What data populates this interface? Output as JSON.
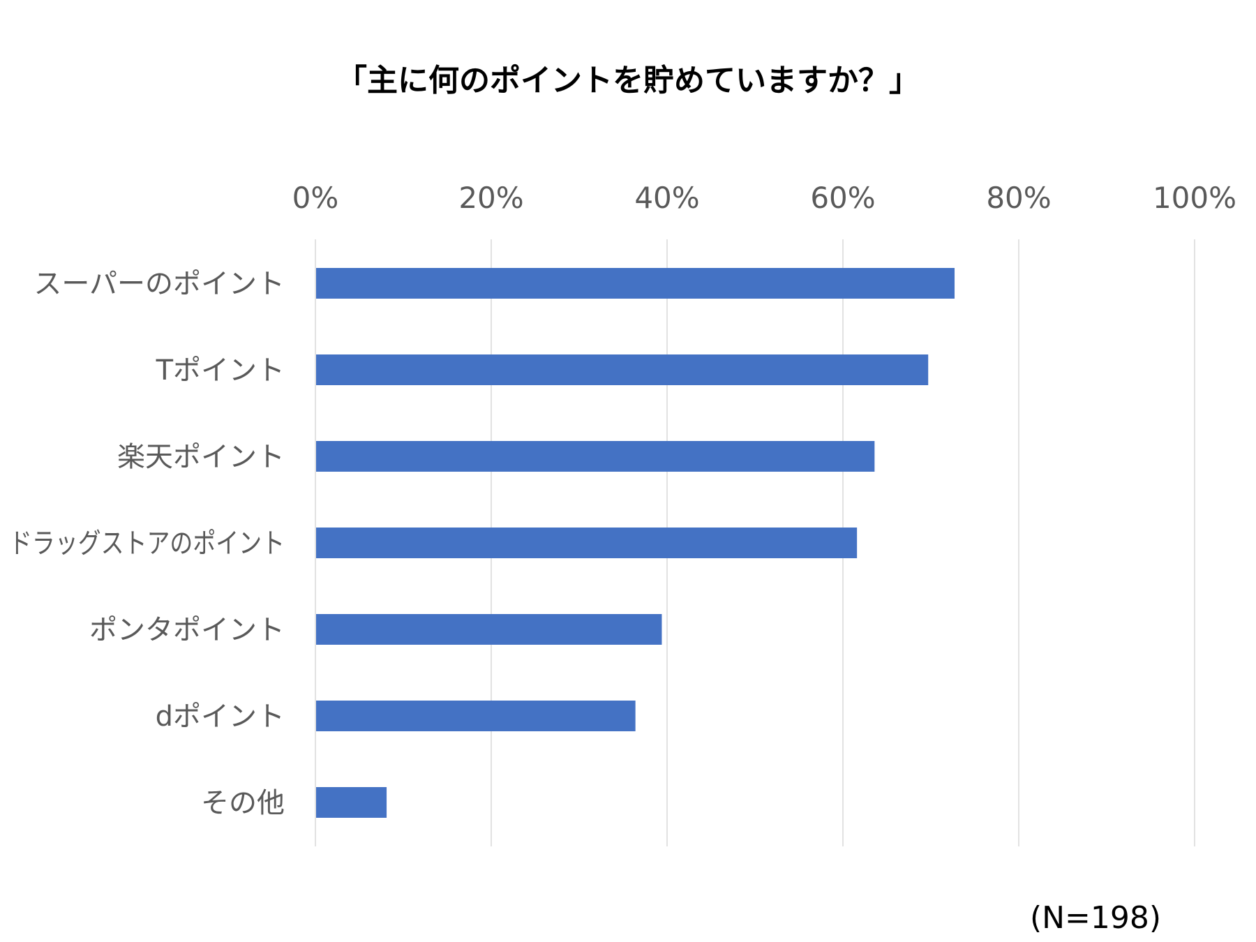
{
  "chart_data": {
    "type": "bar",
    "orientation": "horizontal",
    "title": "「主に何のポイントを貯めていますか？」",
    "categories": [
      "スーパーのポイント",
      "Tポイント",
      "楽天ポイント",
      "ドラッグストアのポイント",
      "ポンタポイント",
      "dポイント",
      "その他"
    ],
    "values": [
      72.7,
      69.7,
      63.6,
      61.6,
      39.4,
      36.4,
      8.1
    ],
    "value_unit": "%",
    "xlim": [
      0,
      100
    ],
    "x_ticks": [
      0,
      20,
      40,
      60,
      80,
      100
    ],
    "x_tick_labels": [
      "0%",
      "20%",
      "40%",
      "60%",
      "80%",
      "100%"
    ],
    "axis_position": "top",
    "grid": true,
    "legend": "none",
    "bar_color": "#4472C4",
    "grid_color": "#D9D9D9",
    "note": "(N=198)"
  }
}
